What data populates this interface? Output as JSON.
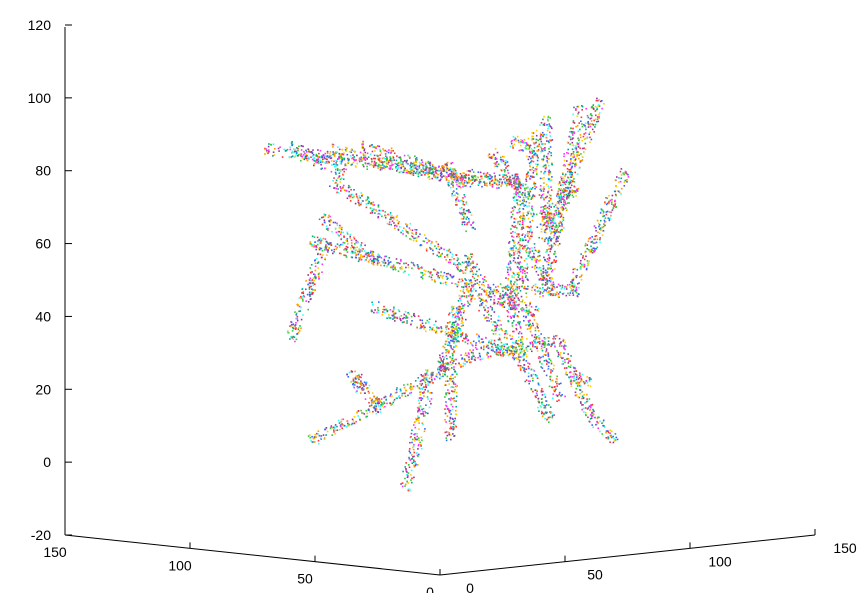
{
  "chart_data": {
    "type": "scatter",
    "subtype": "3d-point-cloud",
    "title": "",
    "xlabel": "",
    "ylabel": "",
    "zlabel": "",
    "z_axis": {
      "ticks": [
        -20,
        0,
        20,
        40,
        60,
        80,
        100,
        120
      ],
      "lim": [
        -20,
        120
      ]
    },
    "x_axis": {
      "ticks": [
        0,
        50,
        100,
        150
      ],
      "lim": [
        0,
        150
      ]
    },
    "y_axis": {
      "ticks": [
        0,
        50,
        100,
        150
      ],
      "lim": [
        0,
        150
      ]
    },
    "grid": false,
    "legend": "none",
    "point_colors": [
      "#ff3333",
      "#33cc33",
      "#3366ff",
      "#ff33ff",
      "#33ffff",
      "#ffcc00",
      "#993399",
      "#ff9900",
      "#00aa88"
    ],
    "description_branches_left_hemisphere": true
  }
}
